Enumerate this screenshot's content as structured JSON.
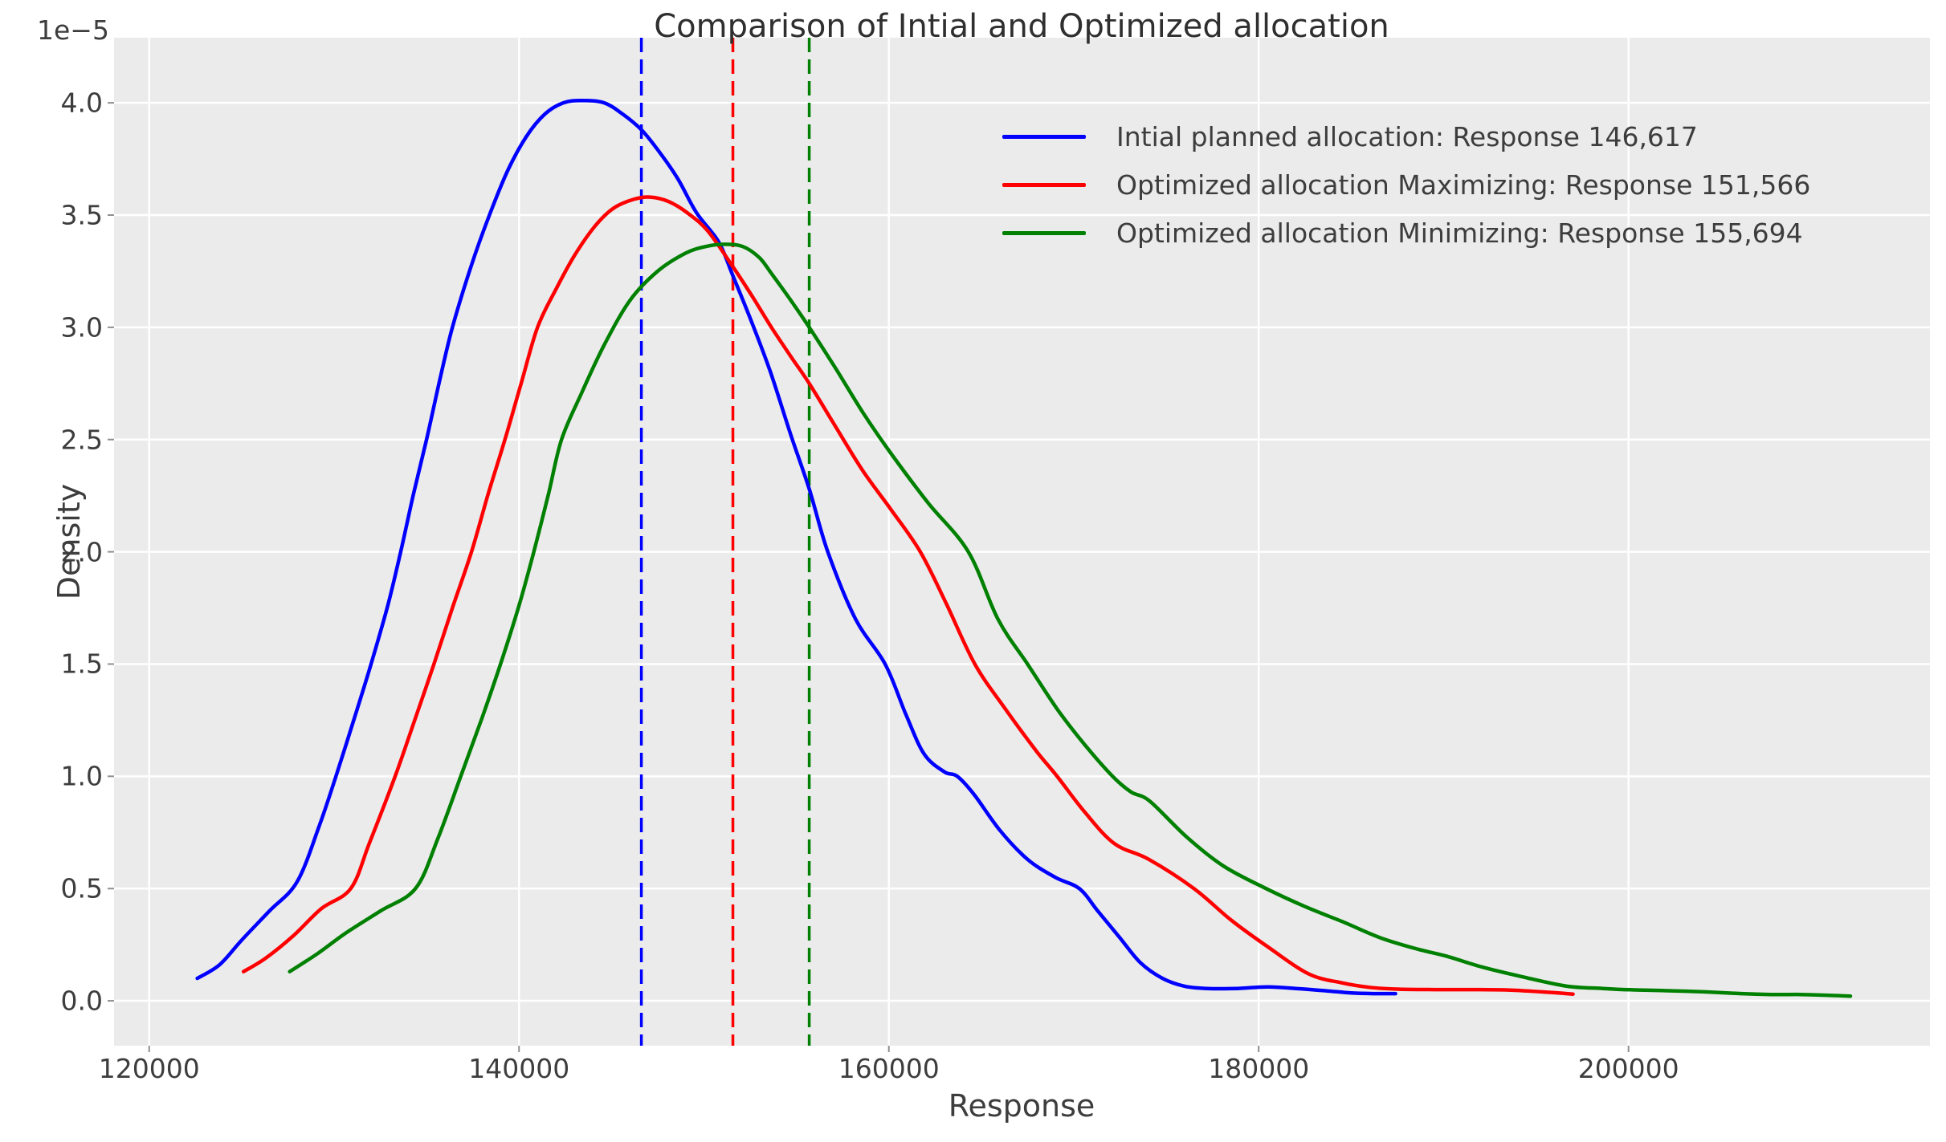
{
  "title": "Comparison of Intial and Optimized allocation",
  "axes": {
    "offset_text": "1e−5",
    "xlabel": "Response",
    "ylabel": "Density",
    "xtick_labels": [
      "120000",
      "140000",
      "160000",
      "180000",
      "200000"
    ],
    "xtick_values": [
      120000,
      140000,
      160000,
      180000,
      200000
    ],
    "ytick_labels": [
      "0.0",
      "0.5",
      "1.0",
      "1.5",
      "2.0",
      "2.5",
      "3.0",
      "3.5",
      "4.0"
    ],
    "ytick_values": [
      0,
      0.5,
      1.0,
      1.5,
      2.0,
      2.5,
      3.0,
      3.5,
      4.0
    ]
  },
  "colors": {
    "figure_bg": "#ffffff",
    "plot_bg": "#ebebeb",
    "grid": "#ffffff",
    "text": "#3d3d3d",
    "tick_mark": "#8f8f8f",
    "blue": "#0000ff",
    "red": "#ff0000",
    "green": "#008000"
  },
  "legend": {
    "position": "upper right",
    "entries": [
      {
        "label": "Intial planned allocation: Response 146,617",
        "color": "#0000ff"
      },
      {
        "label": "Optimized allocation Maximizing: Response 151,566",
        "color": "#ff0000"
      },
      {
        "label": "Optimized allocation Minimizing: Response 155,694",
        "color": "#008000"
      }
    ]
  },
  "chart_data": {
    "type": "line",
    "subtype": "kde-density",
    "title": "Comparison of Intial and Optimized allocation",
    "xlabel": "Response",
    "ylabel": "Density",
    "y_scale_factor": "1e-5",
    "xlim": [
      118100,
      216300
    ],
    "ylim_1e5": [
      -0.2,
      4.29
    ],
    "grid": true,
    "legend_position": "upper right",
    "vlines": [
      {
        "x": 146617,
        "color": "#0000ff",
        "style": "dashed"
      },
      {
        "x": 151566,
        "color": "#ff0000",
        "style": "dashed"
      },
      {
        "x": 155694,
        "color": "#008000",
        "style": "dashed"
      }
    ],
    "series": [
      {
        "name": "Intial planned allocation: Response 146,617",
        "color": "#0000ff",
        "mean_response": 146617,
        "peak": {
          "x": 143400,
          "density_1e5": 4.01
        },
        "points": [
          [
            122600,
            0.1
          ],
          [
            123800,
            0.16
          ],
          [
            125000,
            0.27
          ],
          [
            126500,
            0.4
          ],
          [
            128000,
            0.53
          ],
          [
            129200,
            0.78
          ],
          [
            130100,
            1.0
          ],
          [
            131100,
            1.26
          ],
          [
            132000,
            1.5
          ],
          [
            132900,
            1.76
          ],
          [
            133600,
            2.0
          ],
          [
            134300,
            2.26
          ],
          [
            135000,
            2.5
          ],
          [
            135700,
            2.76
          ],
          [
            136400,
            3.0
          ],
          [
            137400,
            3.27
          ],
          [
            138400,
            3.5
          ],
          [
            139400,
            3.7
          ],
          [
            140400,
            3.85
          ],
          [
            141400,
            3.95
          ],
          [
            142400,
            4.0
          ],
          [
            143400,
            4.01
          ],
          [
            144600,
            4.0
          ],
          [
            145600,
            3.95
          ],
          [
            146617,
            3.88
          ],
          [
            147600,
            3.78
          ],
          [
            148600,
            3.66
          ],
          [
            149600,
            3.51
          ],
          [
            150800,
            3.38
          ],
          [
            151566,
            3.23
          ],
          [
            152600,
            3.02
          ],
          [
            153600,
            2.8
          ],
          [
            154700,
            2.52
          ],
          [
            155694,
            2.28
          ],
          [
            156700,
            2.0
          ],
          [
            158200,
            1.7
          ],
          [
            159800,
            1.5
          ],
          [
            160900,
            1.28
          ],
          [
            161900,
            1.1
          ],
          [
            163000,
            1.02
          ],
          [
            163700,
            1.0
          ],
          [
            164600,
            0.92
          ],
          [
            166000,
            0.76
          ],
          [
            167500,
            0.63
          ],
          [
            169000,
            0.55
          ],
          [
            170300,
            0.5
          ],
          [
            171300,
            0.4
          ],
          [
            172500,
            0.28
          ],
          [
            173600,
            0.17
          ],
          [
            174800,
            0.1
          ],
          [
            176000,
            0.065
          ],
          [
            177200,
            0.055
          ],
          [
            178800,
            0.055
          ],
          [
            180500,
            0.062
          ],
          [
            182000,
            0.055
          ],
          [
            183600,
            0.045
          ],
          [
            185000,
            0.035
          ],
          [
            186200,
            0.032
          ],
          [
            187400,
            0.032
          ]
        ]
      },
      {
        "name": "Optimized allocation Maximizing: Response 151,566",
        "color": "#ff0000",
        "mean_response": 151566,
        "peak": {
          "x": 147100,
          "density_1e5": 3.58
        },
        "points": [
          [
            125100,
            0.13
          ],
          [
            126300,
            0.19
          ],
          [
            127800,
            0.29
          ],
          [
            129300,
            0.41
          ],
          [
            130900,
            0.5
          ],
          [
            131900,
            0.7
          ],
          [
            133300,
            1.0
          ],
          [
            134400,
            1.26
          ],
          [
            135400,
            1.5
          ],
          [
            136400,
            1.75
          ],
          [
            137430,
            2.0
          ],
          [
            138340,
            2.26
          ],
          [
            139240,
            2.5
          ],
          [
            140150,
            2.76
          ],
          [
            141000,
            3.0
          ],
          [
            142000,
            3.17
          ],
          [
            143000,
            3.32
          ],
          [
            144100,
            3.45
          ],
          [
            145100,
            3.53
          ],
          [
            146200,
            3.57
          ],
          [
            147100,
            3.58
          ],
          [
            148100,
            3.56
          ],
          [
            149100,
            3.51
          ],
          [
            150200,
            3.43
          ],
          [
            151566,
            3.27
          ],
          [
            152600,
            3.14
          ],
          [
            153650,
            3.0
          ],
          [
            154700,
            2.87
          ],
          [
            155694,
            2.75
          ],
          [
            157100,
            2.56
          ],
          [
            158600,
            2.36
          ],
          [
            160100,
            2.19
          ],
          [
            161700,
            2.0
          ],
          [
            163100,
            1.77
          ],
          [
            164650,
            1.5
          ],
          [
            166300,
            1.3
          ],
          [
            168000,
            1.11
          ],
          [
            169100,
            1.0
          ],
          [
            170600,
            0.84
          ],
          [
            172200,
            0.7
          ],
          [
            174060,
            0.63
          ],
          [
            176500,
            0.5
          ],
          [
            178500,
            0.36
          ],
          [
            180500,
            0.24
          ],
          [
            182700,
            0.12
          ],
          [
            184500,
            0.08
          ],
          [
            186000,
            0.06
          ],
          [
            187500,
            0.052
          ],
          [
            189500,
            0.05
          ],
          [
            191500,
            0.05
          ],
          [
            193500,
            0.048
          ],
          [
            195300,
            0.04
          ],
          [
            197000,
            0.03
          ]
        ]
      },
      {
        "name": "Optimized allocation Minimizing: Response 155,694",
        "color": "#008000",
        "mean_response": 155694,
        "peak": {
          "x": 151100,
          "density_1e5": 3.37
        },
        "points": [
          [
            127600,
            0.13
          ],
          [
            129100,
            0.21
          ],
          [
            130600,
            0.3
          ],
          [
            132500,
            0.4
          ],
          [
            134400,
            0.5
          ],
          [
            135600,
            0.72
          ],
          [
            136850,
            1.0
          ],
          [
            138000,
            1.26
          ],
          [
            139000,
            1.5
          ],
          [
            140000,
            1.76
          ],
          [
            140800,
            2.0
          ],
          [
            141600,
            2.26
          ],
          [
            142300,
            2.5
          ],
          [
            143400,
            2.71
          ],
          [
            144600,
            2.92
          ],
          [
            146000,
            3.12
          ],
          [
            147500,
            3.25
          ],
          [
            149000,
            3.33
          ],
          [
            150100,
            3.36
          ],
          [
            151100,
            3.37
          ],
          [
            152100,
            3.36
          ],
          [
            153000,
            3.31
          ],
          [
            153650,
            3.24
          ],
          [
            154700,
            3.12
          ],
          [
            155694,
            3.0
          ],
          [
            157100,
            2.82
          ],
          [
            158600,
            2.62
          ],
          [
            160100,
            2.44
          ],
          [
            162100,
            2.22
          ],
          [
            164300,
            2.0
          ],
          [
            165900,
            1.7
          ],
          [
            167500,
            1.5
          ],
          [
            169100,
            1.3
          ],
          [
            170600,
            1.14
          ],
          [
            172100,
            1.0
          ],
          [
            173100,
            0.93
          ],
          [
            174100,
            0.89
          ],
          [
            176100,
            0.73
          ],
          [
            178100,
            0.6
          ],
          [
            180400,
            0.5
          ],
          [
            182500,
            0.42
          ],
          [
            184600,
            0.35
          ],
          [
            186600,
            0.28
          ],
          [
            188600,
            0.23
          ],
          [
            190100,
            0.2
          ],
          [
            192100,
            0.15
          ],
          [
            194100,
            0.11
          ],
          [
            196600,
            0.066
          ],
          [
            198600,
            0.055
          ],
          [
            200100,
            0.049
          ],
          [
            202100,
            0.045
          ],
          [
            204100,
            0.04
          ],
          [
            206100,
            0.032
          ],
          [
            207700,
            0.028
          ],
          [
            209300,
            0.028
          ],
          [
            210700,
            0.025
          ],
          [
            212000,
            0.021
          ]
        ]
      }
    ]
  }
}
